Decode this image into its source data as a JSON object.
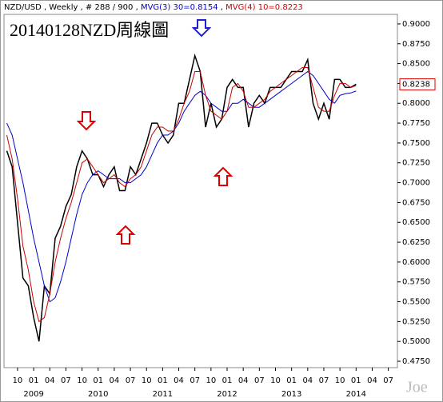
{
  "chart_data": {
    "type": "line",
    "header": [
      "NZD/USD , Weekly , # 288 / 900 , ",
      "MVG(3) 30=0.8154",
      " , ",
      "MVG(4) 10=0.8223"
    ],
    "header_colors": [
      "#000000",
      "#0000cc",
      "#000000",
      "#cc0000"
    ],
    "title": "20140128NZD周線圖",
    "watermark": "Joe",
    "categories": [
      null,
      null,
      "10",
      null,
      null,
      "01",
      null,
      null,
      "04",
      null,
      null,
      "07",
      null,
      null,
      "10",
      null,
      null,
      "01",
      null,
      null,
      "04",
      null,
      null,
      "07",
      null,
      null,
      "10",
      null,
      null,
      "01",
      null,
      null,
      "04",
      null,
      null,
      "07",
      null,
      null,
      "10",
      null,
      null,
      "01",
      null,
      null,
      "04",
      null,
      null,
      "07",
      null,
      null,
      "10",
      null,
      null,
      "01",
      null,
      null,
      "04",
      null,
      null,
      "07",
      null,
      null,
      "10",
      null,
      null,
      "01",
      null,
      null,
      "04",
      null,
      null,
      "07",
      null,
      null
    ],
    "years": [
      "2009",
      "2010",
      "2011",
      "2012",
      "2013",
      "2014"
    ],
    "series": [
      {
        "name": "Price",
        "color": "#000000",
        "values": [
          0.74,
          0.72,
          0.65,
          0.58,
          0.57,
          0.53,
          0.5,
          0.57,
          0.56,
          0.63,
          0.645,
          0.67,
          0.685,
          0.72,
          0.74,
          0.73,
          0.71,
          0.71,
          0.695,
          0.71,
          0.72,
          0.69,
          0.69,
          0.72,
          0.71,
          0.73,
          0.75,
          0.775,
          0.775,
          0.76,
          0.75,
          0.76,
          0.8,
          0.8,
          0.83,
          0.86,
          0.84,
          0.77,
          0.8,
          0.77,
          0.78,
          0.82,
          0.83,
          0.82,
          0.82,
          0.77,
          0.8,
          0.81,
          0.8,
          0.82,
          0.82,
          0.82,
          0.83,
          0.84,
          0.84,
          0.84,
          0.855,
          0.8,
          0.78,
          0.8,
          0.78,
          0.83,
          0.83,
          0.82,
          0.82,
          0.824,
          null,
          null,
          null,
          null,
          null,
          null,
          null,
          null
        ]
      },
      {
        "name": "MVG(3) 30",
        "color": "#0000cc",
        "values": [
          0.775,
          0.76,
          0.73,
          0.7,
          0.665,
          0.63,
          0.6,
          0.57,
          0.55,
          0.555,
          0.575,
          0.6,
          0.63,
          0.66,
          0.685,
          0.7,
          0.71,
          0.715,
          0.71,
          0.705,
          0.705,
          0.705,
          0.7,
          0.7,
          0.705,
          0.71,
          0.72,
          0.735,
          0.75,
          0.76,
          0.76,
          0.765,
          0.775,
          0.79,
          0.8,
          0.81,
          0.815,
          0.81,
          0.8,
          0.795,
          0.79,
          0.79,
          0.8,
          0.8,
          0.805,
          0.8,
          0.795,
          0.795,
          0.8,
          0.805,
          0.81,
          0.815,
          0.82,
          0.825,
          0.83,
          0.835,
          0.84,
          0.835,
          0.825,
          0.815,
          0.805,
          0.8,
          0.81,
          0.812,
          0.813,
          0.8154,
          null,
          null,
          null,
          null,
          null,
          null,
          null,
          null
        ]
      },
      {
        "name": "MVG(4) 10",
        "color": "#cc0000",
        "values": [
          0.76,
          0.73,
          0.68,
          0.62,
          0.59,
          0.55,
          0.525,
          0.53,
          0.56,
          0.6,
          0.63,
          0.655,
          0.675,
          0.7,
          0.725,
          0.73,
          0.72,
          0.71,
          0.7,
          0.705,
          0.71,
          0.7,
          0.695,
          0.705,
          0.71,
          0.72,
          0.74,
          0.76,
          0.77,
          0.77,
          0.765,
          0.765,
          0.78,
          0.8,
          0.815,
          0.84,
          0.84,
          0.81,
          0.79,
          0.785,
          0.78,
          0.79,
          0.82,
          0.825,
          0.815,
          0.795,
          0.795,
          0.8,
          0.805,
          0.815,
          0.82,
          0.825,
          0.83,
          0.835,
          0.84,
          0.845,
          0.845,
          0.82,
          0.795,
          0.79,
          0.79,
          0.81,
          0.825,
          0.825,
          0.82,
          0.8223,
          null,
          null,
          null,
          null,
          null,
          null,
          null,
          null
        ]
      }
    ],
    "last_price": {
      "value": 0.8238,
      "label": "0.8238"
    },
    "ylim": [
      0.467,
      0.912
    ],
    "yticks": [
      {
        "value": 0.475,
        "label": "0.4750"
      },
      {
        "value": 0.5,
        "label": "0.5000"
      },
      {
        "value": 0.525,
        "label": "0.5250"
      },
      {
        "value": 0.55,
        "label": "0.5500"
      },
      {
        "value": 0.575,
        "label": "0.5750"
      },
      {
        "value": 0.6,
        "label": "0.6000"
      },
      {
        "value": 0.625,
        "label": "0.6250"
      },
      {
        "value": 0.65,
        "label": "0.6500"
      },
      {
        "value": 0.675,
        "label": "0.6750"
      },
      {
        "value": 0.7,
        "label": "0.7000"
      },
      {
        "value": 0.725,
        "label": "0.7250"
      },
      {
        "value": 0.75,
        "label": "0.7500"
      },
      {
        "value": 0.775,
        "label": "0.7750"
      },
      {
        "value": 0.8,
        "label": "0.8000"
      },
      {
        "value": 0.825,
        "label": "0.8250"
      },
      {
        "value": 0.85,
        "label": "0.8500"
      },
      {
        "value": 0.875,
        "label": "0.8750"
      },
      {
        "value": 0.9,
        "label": "0.9000"
      }
    ]
  }
}
